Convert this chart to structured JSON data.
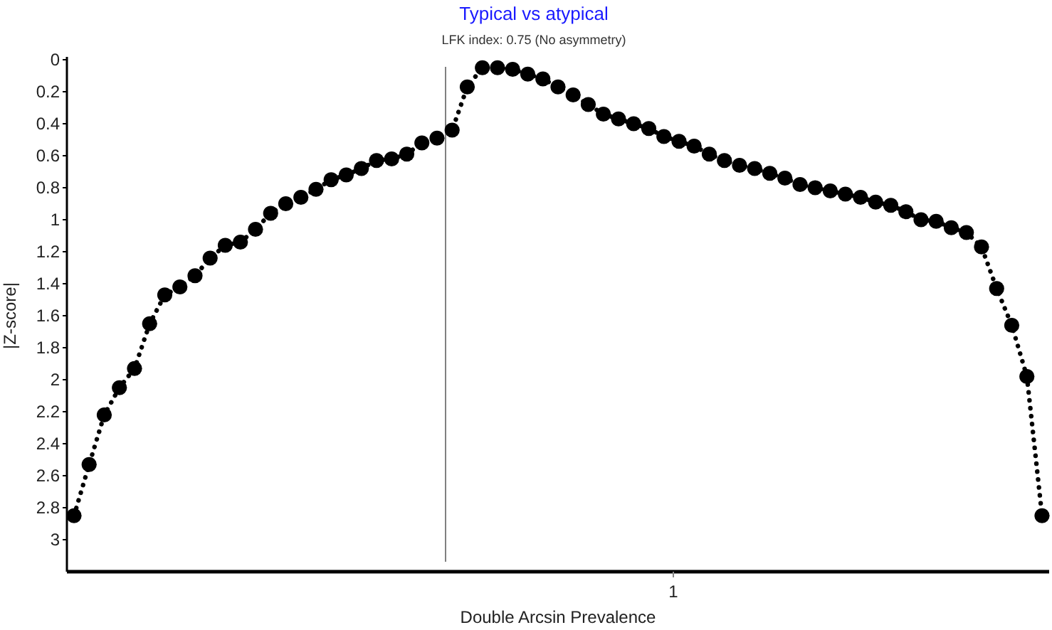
{
  "chart_data": {
    "type": "line",
    "title": "Typical vs atypical",
    "subtitle": "LFK index: 0.75 (No asymmetry)",
    "xlabel": "Double Arcsin Prevalence",
    "ylabel": "|Z-score|",
    "annotations": [
      "1"
    ],
    "categories": [
      null,
      null,
      null,
      null,
      null,
      null,
      null,
      null,
      null,
      null,
      null,
      null,
      null,
      null,
      null,
      null,
      null,
      null,
      null,
      null,
      null,
      null,
      null,
      null,
      null,
      null,
      null,
      null,
      null,
      null,
      null,
      null,
      null,
      null,
      null,
      null,
      null,
      null,
      null,
      null,
      null,
      null,
      null,
      null,
      null,
      null,
      null,
      null,
      null,
      null,
      null,
      null,
      null,
      null,
      null,
      null,
      null,
      null,
      null,
      null,
      null,
      null,
      null,
      null,
      null
    ],
    "ylim": [
      3.2,
      0
    ],
    "yticks": [
      0,
      0.2,
      0.4,
      0.6,
      0.8,
      1,
      1.2,
      1.4,
      1.6,
      1.8,
      2,
      2.2,
      2.4,
      2.6,
      2.8,
      3
    ],
    "marker": "circle",
    "line_style": "dotted",
    "series": [
      {
        "color": "#000000",
        "values": [
          2.85,
          2.53,
          2.22,
          2.05,
          1.93,
          1.65,
          1.47,
          1.42,
          1.35,
          1.24,
          1.16,
          1.14,
          1.06,
          0.96,
          0.9,
          0.86,
          0.81,
          0.75,
          0.72,
          0.68,
          0.63,
          0.62,
          0.59,
          0.52,
          0.49,
          0.44,
          0.17,
          0.05,
          0.05,
          0.06,
          0.09,
          0.12,
          0.17,
          0.22,
          0.28,
          0.34,
          0.37,
          0.4,
          0.43,
          0.48,
          0.51,
          0.54,
          0.59,
          0.63,
          0.66,
          0.68,
          0.71,
          0.74,
          0.78,
          0.8,
          0.82,
          0.84,
          0.86,
          0.89,
          0.91,
          0.95,
          1,
          1.01,
          1.05,
          1.08,
          1.17,
          1.43,
          1.66,
          1.98,
          2.85
        ]
      }
    ]
  }
}
